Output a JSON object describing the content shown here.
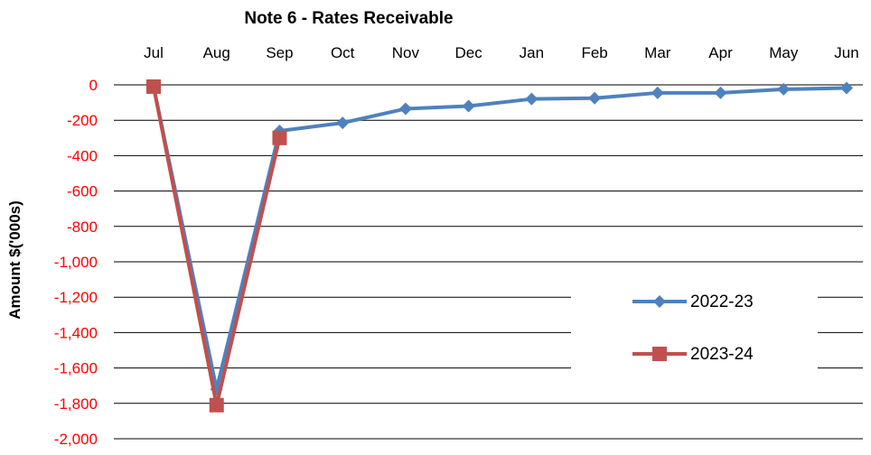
{
  "chart_data": {
    "type": "line",
    "title": "Note 6 - Rates Receivable",
    "xlabel": "",
    "ylabel": "Amount $('000s)",
    "categories": [
      "Jul",
      "Aug",
      "Sep",
      "Oct",
      "Nov",
      "Dec",
      "Jan",
      "Feb",
      "Mar",
      "Apr",
      "May",
      "Jun"
    ],
    "ylim": [
      -2000,
      0
    ],
    "yticks": [
      0,
      -200,
      -400,
      -600,
      -800,
      -1000,
      -1200,
      -1400,
      -1600,
      -1800,
      -2000
    ],
    "ytick_labels": [
      "0",
      "-200",
      "-400",
      "-600",
      "-800",
      "-1,000",
      "-1,200",
      "-1,400",
      "-1,600",
      "-1,800",
      "-2,000"
    ],
    "x_axis_position": "top",
    "grid": true,
    "legend_position": "right",
    "series": [
      {
        "name": "2022-23",
        "color": "#4F81BD",
        "marker": "diamond",
        "values": [
          -10,
          -1720,
          -260,
          -215,
          -135,
          -120,
          -80,
          -75,
          -45,
          -45,
          -25,
          -18
        ]
      },
      {
        "name": "2023-24",
        "color": "#C0504D",
        "marker": "square",
        "values": [
          -10,
          -1810,
          -300,
          null,
          null,
          null,
          null,
          null,
          null,
          null,
          null,
          null
        ]
      }
    ],
    "colors": {
      "ytick_text": "#ff0000",
      "axis_text": "#000000",
      "gridline": "#000000"
    }
  }
}
